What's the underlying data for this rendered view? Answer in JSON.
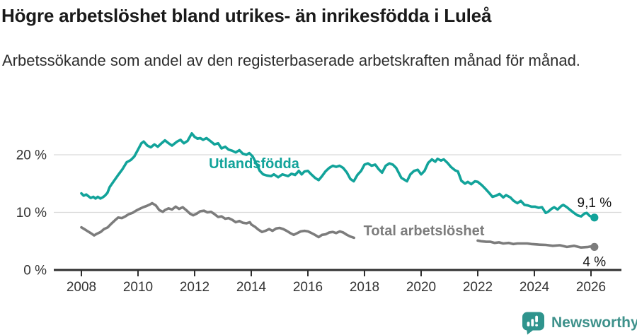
{
  "header": {
    "title": "Högre arbetslöshet bland utrikes- än inrikesfödda i Luleå",
    "subtitle": "Arbetssökande som andel av den registerbaserade arbetskraften månad för månad."
  },
  "footer": {
    "brand": "Newsworthy",
    "brand_color": "#3e918b",
    "icon_color": "#2f948d",
    "logo_icon": "bar-chart-speech-bubble-icon"
  },
  "chart_data": {
    "type": "line",
    "unit": "%",
    "grid": "horizontal",
    "x_axis": {
      "ticks": [
        2008,
        2010,
        2012,
        2014,
        2016,
        2018,
        2020,
        2022,
        2024,
        2026
      ],
      "min": 2008,
      "max": 2026.12
    },
    "y_axis": {
      "ticks": [
        0,
        10,
        20
      ],
      "tick_labels": [
        "0 %",
        "10 %",
        "20 %"
      ],
      "min": 0,
      "max": 24
    },
    "colors": {
      "grid": "#dadada",
      "axis": "#2f2f2f",
      "tick_label": "#333333",
      "end_label": "#111111"
    },
    "series": [
      {
        "name": "Utlandsfödda",
        "color": "#12a39a",
        "end_label": "9,1 %",
        "end_value": 9.1,
        "label_at": {
          "x": 2014.1,
          "y": 18.5
        },
        "segments": [
          [
            [
              2008.0,
              13.3
            ],
            [
              2008.08,
              12.9
            ],
            [
              2008.17,
              13.1
            ],
            [
              2008.25,
              12.8
            ],
            [
              2008.33,
              12.5
            ],
            [
              2008.42,
              12.7
            ],
            [
              2008.5,
              12.4
            ],
            [
              2008.58,
              12.7
            ],
            [
              2008.67,
              12.4
            ],
            [
              2008.75,
              12.6
            ],
            [
              2008.83,
              12.9
            ],
            [
              2008.92,
              13.4
            ],
            [
              2009.0,
              14.4
            ],
            [
              2009.17,
              15.6
            ],
            [
              2009.3,
              16.5
            ],
            [
              2009.45,
              17.5
            ],
            [
              2009.6,
              18.7
            ],
            [
              2009.75,
              19.1
            ],
            [
              2009.87,
              19.7
            ],
            [
              2010.0,
              20.9
            ],
            [
              2010.12,
              22.0
            ],
            [
              2010.2,
              22.3
            ],
            [
              2010.33,
              21.6
            ],
            [
              2010.45,
              21.3
            ],
            [
              2010.58,
              21.8
            ],
            [
              2010.7,
              21.4
            ],
            [
              2010.83,
              22.0
            ],
            [
              2010.95,
              22.5
            ],
            [
              2011.08,
              22.0
            ],
            [
              2011.2,
              21.6
            ],
            [
              2011.38,
              22.3
            ],
            [
              2011.5,
              22.6
            ],
            [
              2011.62,
              22.0
            ],
            [
              2011.75,
              22.4
            ],
            [
              2011.9,
              23.7
            ],
            [
              2012.0,
              23.1
            ],
            [
              2012.1,
              22.8
            ],
            [
              2012.2,
              22.9
            ],
            [
              2012.3,
              22.6
            ],
            [
              2012.42,
              22.9
            ],
            [
              2012.55,
              22.4
            ],
            [
              2012.7,
              21.8
            ],
            [
              2012.83,
              22.0
            ],
            [
              2012.95,
              21.1
            ],
            [
              2013.08,
              21.4
            ],
            [
              2013.2,
              20.9
            ],
            [
              2013.33,
              20.7
            ],
            [
              2013.45,
              20.4
            ],
            [
              2013.58,
              20.8
            ],
            [
              2013.7,
              20.2
            ],
            [
              2013.83,
              20.0
            ],
            [
              2013.93,
              20.3
            ],
            [
              2014.05,
              19.7
            ],
            [
              2014.2,
              18.3
            ],
            [
              2014.3,
              17.2
            ],
            [
              2014.42,
              16.6
            ],
            [
              2014.55,
              16.4
            ],
            [
              2014.7,
              16.3
            ],
            [
              2014.8,
              16.6
            ],
            [
              2014.95,
              16.1
            ],
            [
              2015.1,
              16.6
            ],
            [
              2015.3,
              16.3
            ],
            [
              2015.42,
              16.7
            ],
            [
              2015.55,
              16.5
            ],
            [
              2015.68,
              17.2
            ],
            [
              2015.78,
              16.6
            ],
            [
              2015.88,
              17.1
            ],
            [
              2016.0,
              17.2
            ],
            [
              2016.12,
              16.6
            ],
            [
              2016.25,
              16.0
            ],
            [
              2016.38,
              15.6
            ],
            [
              2016.5,
              16.3
            ],
            [
              2016.62,
              17.1
            ],
            [
              2016.75,
              17.7
            ],
            [
              2016.88,
              18.1
            ],
            [
              2017.0,
              17.9
            ],
            [
              2017.12,
              18.1
            ],
            [
              2017.25,
              17.7
            ],
            [
              2017.38,
              16.9
            ],
            [
              2017.5,
              15.8
            ],
            [
              2017.62,
              15.4
            ],
            [
              2017.75,
              16.5
            ],
            [
              2017.88,
              17.2
            ],
            [
              2018.0,
              18.3
            ],
            [
              2018.12,
              18.5
            ],
            [
              2018.25,
              18.1
            ],
            [
              2018.38,
              18.3
            ],
            [
              2018.5,
              17.5
            ],
            [
              2018.62,
              16.9
            ],
            [
              2018.75,
              18.1
            ],
            [
              2018.88,
              18.5
            ],
            [
              2019.0,
              18.3
            ],
            [
              2019.12,
              17.7
            ],
            [
              2019.3,
              16.0
            ],
            [
              2019.5,
              15.4
            ],
            [
              2019.62,
              16.6
            ],
            [
              2019.75,
              17.2
            ],
            [
              2019.88,
              17.4
            ],
            [
              2020.0,
              16.6
            ],
            [
              2020.12,
              17.2
            ],
            [
              2020.25,
              18.6
            ],
            [
              2020.38,
              19.2
            ],
            [
              2020.5,
              18.8
            ],
            [
              2020.58,
              19.3
            ],
            [
              2020.7,
              19.0
            ],
            [
              2020.8,
              19.2
            ],
            [
              2020.93,
              18.6
            ],
            [
              2021.05,
              17.9
            ],
            [
              2021.2,
              17.3
            ],
            [
              2021.3,
              17.1
            ],
            [
              2021.42,
              15.5
            ],
            [
              2021.55,
              15.0
            ],
            [
              2021.65,
              15.3
            ],
            [
              2021.77,
              14.9
            ],
            [
              2021.9,
              15.4
            ],
            [
              2022.0,
              15.3
            ],
            [
              2022.15,
              14.7
            ],
            [
              2022.27,
              14.1
            ],
            [
              2022.4,
              13.4
            ],
            [
              2022.52,
              12.7
            ],
            [
              2022.65,
              12.9
            ],
            [
              2022.77,
              13.2
            ],
            [
              2022.9,
              12.6
            ],
            [
              2023.0,
              13.0
            ],
            [
              2023.15,
              12.6
            ],
            [
              2023.27,
              12.0
            ],
            [
              2023.4,
              11.6
            ],
            [
              2023.52,
              12.0
            ],
            [
              2023.65,
              11.3
            ],
            [
              2023.77,
              11.2
            ],
            [
              2023.9,
              11.0
            ],
            [
              2024.02,
              11.0
            ],
            [
              2024.15,
              10.8
            ],
            [
              2024.27,
              10.9
            ],
            [
              2024.4,
              9.9
            ],
            [
              2024.48,
              10.1
            ],
            [
              2024.6,
              10.6
            ],
            [
              2024.7,
              10.9
            ],
            [
              2024.82,
              10.5
            ],
            [
              2024.95,
              11.1
            ],
            [
              2025.02,
              11.3
            ],
            [
              2025.15,
              10.9
            ],
            [
              2025.27,
              10.4
            ],
            [
              2025.4,
              9.9
            ],
            [
              2025.52,
              9.5
            ],
            [
              2025.65,
              9.3
            ],
            [
              2025.77,
              9.8
            ],
            [
              2025.85,
              9.9
            ],
            [
              2025.95,
              9.4
            ],
            [
              2026.05,
              9.2
            ],
            [
              2026.12,
              9.1
            ]
          ]
        ]
      },
      {
        "name": "Total arbetslöshet",
        "color": "#7c7c7c",
        "end_label": "4 %",
        "end_value": 4.0,
        "label_at": {
          "x": 2020.1,
          "y": 6.9
        },
        "segments": [
          [
            [
              2008.0,
              7.4
            ],
            [
              2008.1,
              7.1
            ],
            [
              2008.2,
              6.8
            ],
            [
              2008.33,
              6.4
            ],
            [
              2008.45,
              6.0
            ],
            [
              2008.55,
              6.3
            ],
            [
              2008.68,
              6.6
            ],
            [
              2008.8,
              7.1
            ],
            [
              2008.93,
              7.4
            ],
            [
              2009.05,
              8.0
            ],
            [
              2009.18,
              8.6
            ],
            [
              2009.3,
              9.1
            ],
            [
              2009.43,
              9.0
            ],
            [
              2009.55,
              9.3
            ],
            [
              2009.68,
              9.7
            ],
            [
              2009.8,
              9.9
            ],
            [
              2009.93,
              10.3
            ],
            [
              2010.05,
              10.6
            ],
            [
              2010.18,
              10.9
            ],
            [
              2010.3,
              11.1
            ],
            [
              2010.43,
              11.4
            ],
            [
              2010.5,
              11.6
            ],
            [
              2010.63,
              11.2
            ],
            [
              2010.75,
              10.4
            ],
            [
              2010.88,
              10.1
            ],
            [
              2010.95,
              10.4
            ],
            [
              2011.08,
              10.7
            ],
            [
              2011.2,
              10.5
            ],
            [
              2011.33,
              11.0
            ],
            [
              2011.45,
              10.6
            ],
            [
              2011.58,
              10.9
            ],
            [
              2011.7,
              10.4
            ],
            [
              2011.83,
              9.8
            ],
            [
              2011.95,
              9.5
            ],
            [
              2012.08,
              9.8
            ],
            [
              2012.2,
              10.2
            ],
            [
              2012.33,
              10.3
            ],
            [
              2012.45,
              10.0
            ],
            [
              2012.58,
              10.1
            ],
            [
              2012.7,
              9.7
            ],
            [
              2012.83,
              9.2
            ],
            [
              2012.95,
              9.3
            ],
            [
              2013.08,
              8.9
            ],
            [
              2013.2,
              9.0
            ],
            [
              2013.33,
              8.7
            ],
            [
              2013.45,
              8.3
            ],
            [
              2013.58,
              8.5
            ],
            [
              2013.7,
              8.2
            ],
            [
              2013.83,
              8.1
            ],
            [
              2013.95,
              8.3
            ],
            [
              2014.0,
              7.9
            ],
            [
              2014.13,
              7.5
            ],
            [
              2014.25,
              7.0
            ],
            [
              2014.38,
              6.6
            ],
            [
              2014.5,
              6.8
            ],
            [
              2014.63,
              7.1
            ],
            [
              2014.75,
              6.8
            ],
            [
              2014.88,
              7.2
            ],
            [
              2015.0,
              7.3
            ],
            [
              2015.13,
              7.1
            ],
            [
              2015.25,
              6.8
            ],
            [
              2015.38,
              6.4
            ],
            [
              2015.5,
              6.1
            ],
            [
              2015.63,
              6.4
            ],
            [
              2015.75,
              6.7
            ],
            [
              2015.88,
              6.8
            ],
            [
              2016.0,
              6.7
            ],
            [
              2016.13,
              6.4
            ],
            [
              2016.25,
              6.1
            ],
            [
              2016.38,
              5.7
            ],
            [
              2016.5,
              6.1
            ],
            [
              2016.63,
              6.2
            ],
            [
              2016.75,
              6.5
            ],
            [
              2016.88,
              6.6
            ],
            [
              2017.0,
              6.4
            ],
            [
              2017.13,
              6.7
            ],
            [
              2017.25,
              6.5
            ],
            [
              2017.38,
              6.1
            ],
            [
              2017.5,
              5.8
            ],
            [
              2017.63,
              5.6
            ]
          ],
          [
            [
              2022.0,
              5.1
            ],
            [
              2022.12,
              5.0
            ],
            [
              2022.3,
              4.9
            ],
            [
              2022.45,
              4.9
            ],
            [
              2022.6,
              4.7
            ],
            [
              2022.75,
              4.8
            ],
            [
              2022.9,
              4.6
            ],
            [
              2023.1,
              4.7
            ],
            [
              2023.25,
              4.5
            ],
            [
              2023.4,
              4.6
            ],
            [
              2023.55,
              4.6
            ],
            [
              2023.75,
              4.6
            ],
            [
              2023.9,
              4.5
            ],
            [
              2024.15,
              4.4
            ],
            [
              2024.4,
              4.35
            ],
            [
              2024.65,
              4.2
            ],
            [
              2024.9,
              4.3
            ],
            [
              2025.15,
              4.0
            ],
            [
              2025.4,
              4.2
            ],
            [
              2025.65,
              3.9
            ],
            [
              2025.9,
              4.0
            ],
            [
              2026.0,
              4.1
            ],
            [
              2026.12,
              4.0
            ]
          ]
        ]
      }
    ]
  }
}
